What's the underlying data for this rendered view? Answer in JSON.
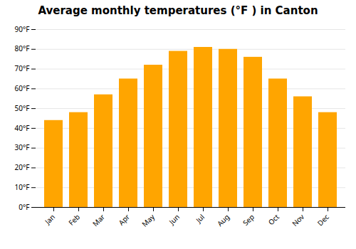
{
  "chart_data": {
    "type": "bar",
    "title": "Average monthly temperatures (°F ) in Canton",
    "categories": [
      "Jan",
      "Feb",
      "Mar",
      "Apr",
      "May",
      "Jun",
      "Jul",
      "Aug",
      "Sep",
      "Oct",
      "Nov",
      "Dec"
    ],
    "values": [
      44,
      48,
      57,
      65,
      72,
      79,
      81,
      80,
      76,
      65,
      56,
      48
    ],
    "color": "#FFA500",
    "ylim": [
      0,
      90
    ],
    "yticks": [
      {
        "value": 0,
        "label": "0°F"
      },
      {
        "value": 10,
        "label": "10°F"
      },
      {
        "value": 20,
        "label": "20°F"
      },
      {
        "value": 30,
        "label": "30°F"
      },
      {
        "value": 40,
        "label": "40°F"
      },
      {
        "value": 50,
        "label": "50°F"
      },
      {
        "value": 60,
        "label": "60°F"
      },
      {
        "value": 70,
        "label": "70°F"
      },
      {
        "value": 80,
        "label": "80°F"
      },
      {
        "value": 90,
        "label": "90°F"
      }
    ],
    "grid": true
  }
}
